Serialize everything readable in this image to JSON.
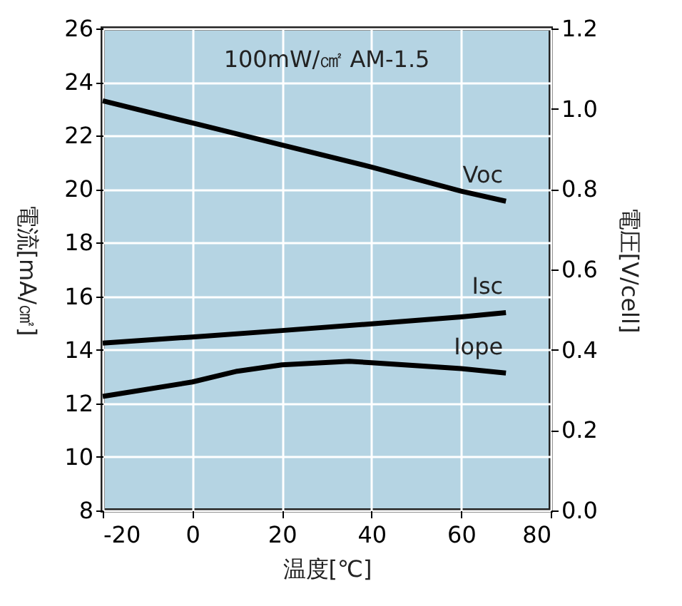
{
  "chart_data": {
    "type": "line",
    "xlabel": "温度[℃]",
    "ylabel": "電流[mA/㎠]",
    "y2label": "電圧[V/cell]",
    "annotations": [
      "100mW/㎠  AM-1.5"
    ],
    "series": [
      {
        "name": "Voc",
        "color": "#000000",
        "axis": "y2",
        "x": [
          -20,
          0,
          20,
          40,
          60,
          70
        ],
        "values": [
          1.02,
          0.965,
          0.91,
          0.855,
          0.795,
          0.77
        ]
      },
      {
        "name": "Isc",
        "color": "#000000",
        "x": [
          -20,
          0,
          20,
          40,
          60,
          70
        ],
        "values": [
          14.25,
          14.48,
          14.72,
          14.97,
          15.23,
          15.39
        ]
      },
      {
        "name": "Iope",
        "color": "#000000",
        "x": [
          -20,
          0,
          10,
          20,
          35,
          40,
          60,
          70
        ],
        "values": [
          12.26,
          12.8,
          13.2,
          13.44,
          13.57,
          13.52,
          13.3,
          13.13
        ]
      }
    ],
    "xlim": [
      -20,
      80
    ],
    "xticks": [
      -20,
      0,
      20,
      40,
      60,
      80
    ],
    "ylim": [
      8,
      26
    ],
    "yticks": [
      8,
      10,
      12,
      14,
      16,
      18,
      20,
      22,
      24,
      26
    ],
    "y2lim": [
      0,
      1.2
    ],
    "y2ticks": [
      {
        "value": 0,
        "label": "0.0"
      },
      0.2,
      0.4,
      0.6,
      0.8,
      {
        "value": 1,
        "label": "1.0"
      },
      1.2
    ],
    "grid": true,
    "marker": "none",
    "line_style": "solid"
  }
}
